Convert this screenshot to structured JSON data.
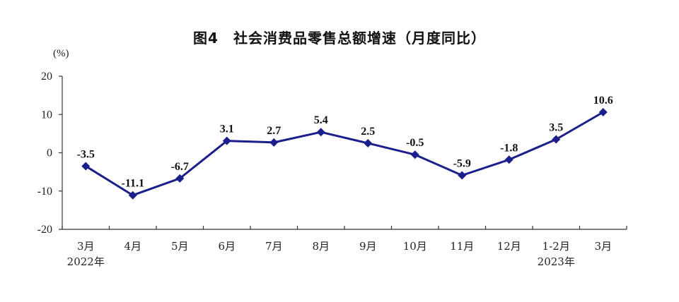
{
  "chart_data": {
    "type": "line",
    "title": "图4　社会消费品零售总额增速（月度同比）",
    "unit_label": "(%)",
    "categories": [
      "3月",
      "4月",
      "5月",
      "6月",
      "7月",
      "8月",
      "9月",
      "10月",
      "11月",
      "12月",
      "1-2月",
      "3月"
    ],
    "year_labels": [
      {
        "index": 0,
        "text": "2022年"
      },
      {
        "index": 10,
        "text": "2023年"
      }
    ],
    "values": [
      -3.5,
      -11.1,
      -6.7,
      3.1,
      2.7,
      5.4,
      2.5,
      -0.5,
      -5.9,
      -1.8,
      3.5,
      10.6
    ],
    "data_labels": [
      "-3.5",
      "-11.1",
      "-6.7",
      "3.1",
      "2.7",
      "5.4",
      "2.5",
      "-0.5",
      "-5.9",
      "-1.8",
      "3.5",
      "10.6"
    ],
    "ylim": [
      -20,
      20
    ],
    "yticks": [
      -20,
      -10,
      0,
      10,
      20
    ],
    "grid": false,
    "line_color": "#1a1f8c"
  }
}
